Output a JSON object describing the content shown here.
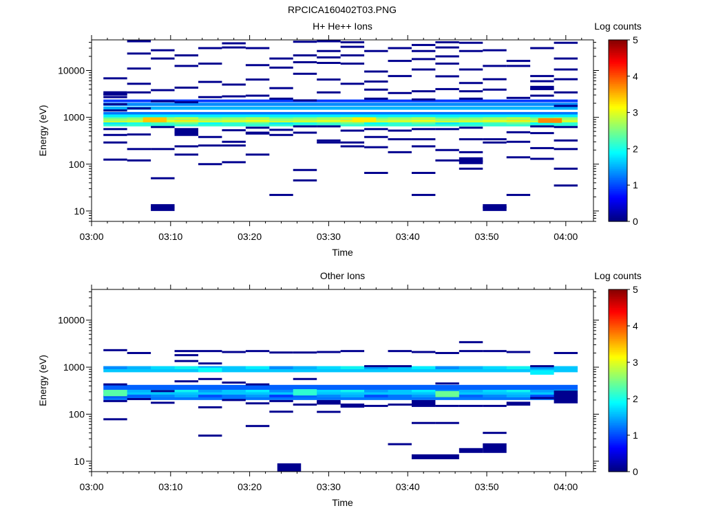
{
  "figure_title": "RPCICA160402T03.PNG",
  "chart_data": [
    {
      "type": "heatmap",
      "title": "H+ He++ Ions",
      "xlabel": "Time",
      "ylabel": "Energy (eV)",
      "x_ticks": [
        "03:00",
        "03:10",
        "03:20",
        "03:30",
        "03:40",
        "03:50",
        "04:00"
      ],
      "x_range_minutes": [
        0,
        63.5
      ],
      "y_scale": "log",
      "y_range_eV": [
        6,
        45000
      ],
      "y_ticks": [
        "10",
        "100",
        "1000",
        "10000"
      ],
      "colorbar": {
        "label": "Log counts",
        "min": 0,
        "max": 5,
        "ticks": [
          "0",
          "1",
          "2",
          "3",
          "4",
          "5"
        ]
      },
      "bands": [
        {
          "e_min": 640,
          "e_max": 780,
          "level": 2.1
        },
        {
          "e_min": 780,
          "e_max": 880,
          "level": 2.9
        },
        {
          "e_min": 880,
          "e_max": 1000,
          "level": 2.6
        },
        {
          "e_min": 1000,
          "e_max": 1150,
          "level": 1.8
        },
        {
          "e_min": 1150,
          "e_max": 1300,
          "level": 1.2
        },
        {
          "e_min": 1450,
          "e_max": 1700,
          "level": 1.5
        },
        {
          "e_min": 1750,
          "e_max": 2050,
          "level": 1.3
        },
        {
          "e_min": 2100,
          "e_max": 2400,
          "level": 0.9
        }
      ],
      "hot_spots": [
        {
          "t0": 6.5,
          "t1": 9.5,
          "e_min": 780,
          "e_max": 1000,
          "level": 3.4
        },
        {
          "t0": 56.5,
          "t1": 59.5,
          "e_min": 760,
          "e_max": 960,
          "level": 3.7
        },
        {
          "t0": 33,
          "t1": 36,
          "e_min": 780,
          "e_max": 1000,
          "level": 3.2
        }
      ],
      "segments": [
        {
          "t0": 1.5,
          "t1": 4.5,
          "energies": [
            2700,
            3100,
            1900,
            1400,
            560,
            420,
            290,
            125,
            6800
          ]
        },
        {
          "t0": 4.5,
          "t1": 7.5,
          "energies": [
            42000,
            23000,
            11000,
            5200,
            3400,
            1550,
            430,
            210,
            120
          ]
        },
        {
          "t0": 7.5,
          "t1": 10.5,
          "energies": [
            27000,
            18000,
            3800,
            2200,
            620,
            210,
            50,
            12
          ]
        },
        {
          "t0": 10.5,
          "t1": 13.5,
          "energies": [
            21000,
            12500,
            4300,
            2100,
            560,
            470,
            240,
            160
          ]
        },
        {
          "t0": 13.5,
          "t1": 16.5,
          "energies": [
            30000,
            14000,
            5700,
            2700,
            380,
            250,
            100
          ]
        },
        {
          "t0": 16.5,
          "t1": 19.5,
          "energies": [
            38000,
            31000,
            5000,
            2800,
            530,
            300,
            250,
            110
          ]
        },
        {
          "t0": 19.5,
          "t1": 22.5,
          "energies": [
            30000,
            13000,
            6400,
            2900,
            600,
            470,
            160,
            450
          ]
        },
        {
          "t0": 22.5,
          "t1": 25.5,
          "energies": [
            18000,
            11500,
            4200,
            2500,
            540,
            420,
            22
          ]
        },
        {
          "t0": 25.5,
          "t1": 28.5,
          "energies": [
            41000,
            21000,
            8500,
            2300,
            640,
            470,
            75,
            45,
            15000
          ]
        },
        {
          "t0": 28.5,
          "t1": 31.5,
          "energies": [
            42000,
            26000,
            19000,
            14500,
            6400,
            3400,
            640,
            320,
            290
          ]
        },
        {
          "t0": 31.5,
          "t1": 34.5,
          "energies": [
            40000,
            32000,
            21000,
            14000,
            5200,
            520,
            290,
            240
          ]
        },
        {
          "t0": 34.5,
          "t1": 37.5,
          "energies": [
            26000,
            9500,
            5800,
            3900,
            2500,
            560,
            380,
            230,
            65
          ]
        },
        {
          "t0": 37.5,
          "t1": 40.5,
          "energies": [
            30000,
            16000,
            7600,
            3300,
            520,
            340,
            180
          ]
        },
        {
          "t0": 40.5,
          "t1": 43.5,
          "energies": [
            35000,
            26000,
            17500,
            10500,
            3600,
            2400,
            560,
            340,
            240,
            65,
            22
          ]
        },
        {
          "t0": 43.5,
          "t1": 46.5,
          "energies": [
            40000,
            31000,
            20000,
            14000,
            7500,
            4000,
            560,
            200,
            120
          ]
        },
        {
          "t0": 46.5,
          "t1": 49.5,
          "energies": [
            39000,
            26000,
            10500,
            5400,
            3600,
            2500,
            600,
            340,
            180,
            115,
            80
          ]
        },
        {
          "t0": 49.5,
          "t1": 52.5,
          "energies": [
            27000,
            12500,
            6500,
            3900,
            340,
            290,
            12
          ]
        },
        {
          "t0": 52.5,
          "t1": 55.5,
          "energies": [
            16000,
            12500,
            2600,
            480,
            300,
            140,
            22
          ]
        },
        {
          "t0": 55.5,
          "t1": 58.5,
          "energies": [
            30000,
            7600,
            5900,
            4100,
            2900,
            640,
            460,
            220,
            130
          ]
        },
        {
          "t0": 58.5,
          "t1": 61.5,
          "energies": [
            39000,
            18000,
            10500,
            6500,
            3400,
            1750,
            620,
            320,
            210,
            80,
            35
          ]
        }
      ],
      "blocks": [
        {
          "t0": 7.5,
          "t1": 10.5,
          "e_min": 10,
          "e_max": 14
        },
        {
          "t0": 49.5,
          "t1": 52.5,
          "e_min": 10,
          "e_max": 14
        },
        {
          "t0": 10.5,
          "t1": 13.5,
          "e_min": 400,
          "e_max": 540
        },
        {
          "t0": 46.5,
          "t1": 49.5,
          "e_min": 100,
          "e_max": 140
        },
        {
          "t0": 1.5,
          "t1": 4.5,
          "e_min": 2900,
          "e_max": 3600
        },
        {
          "t0": 55.5,
          "t1": 58.5,
          "e_min": 3800,
          "e_max": 4700
        }
      ]
    },
    {
      "type": "heatmap",
      "title": "Other Ions",
      "xlabel": "Time",
      "ylabel": "Energy (eV)",
      "x_ticks": [
        "03:00",
        "03:10",
        "03:20",
        "03:30",
        "03:40",
        "03:50",
        "04:00"
      ],
      "x_range_minutes": [
        0,
        63.5
      ],
      "y_scale": "log",
      "y_range_eV": [
        6,
        45000
      ],
      "y_ticks": [
        "10",
        "100",
        "1000",
        "10000"
      ],
      "colorbar": {
        "label": "Log counts",
        "min": 0,
        "max": 5,
        "ticks": [
          "0",
          "1",
          "2",
          "3",
          "4",
          "5"
        ]
      },
      "bands": [
        {
          "e_min": 780,
          "e_max": 1050,
          "level": 1.6
        },
        {
          "e_min": 200,
          "e_max": 260,
          "level": 1.2
        },
        {
          "e_min": 260,
          "e_max": 330,
          "level": 1.6
        },
        {
          "e_min": 330,
          "e_max": 420,
          "level": 1.1
        }
      ],
      "hot_spots": [
        {
          "t0": 1.5,
          "t1": 4.5,
          "e_min": 240,
          "e_max": 330,
          "level": 2.3
        },
        {
          "t0": 43.5,
          "t1": 46.5,
          "e_min": 230,
          "e_max": 310,
          "level": 2.4
        },
        {
          "t0": 25.5,
          "t1": 28.5,
          "e_min": 250,
          "e_max": 340,
          "level": 2.1
        },
        {
          "t0": 13.5,
          "t1": 16.5,
          "e_min": 790,
          "e_max": 980,
          "level": 1.9
        },
        {
          "t0": 55.5,
          "t1": 58.5,
          "e_min": 690,
          "e_max": 860,
          "level": 1.8
        }
      ],
      "segments": [
        {
          "t0": 1.5,
          "t1": 4.5,
          "energies": [
            2300,
            430,
            190,
            78
          ]
        },
        {
          "t0": 4.5,
          "t1": 7.5,
          "energies": [
            2000,
            210
          ]
        },
        {
          "t0": 7.5,
          "t1": 10.5,
          "energies": [
            310,
            175
          ]
        },
        {
          "t0": 10.5,
          "t1": 13.5,
          "energies": [
            2200,
            1800,
            1350,
            500
          ]
        },
        {
          "t0": 13.5,
          "t1": 16.5,
          "energies": [
            2200,
            1200,
            560,
            140,
            35
          ]
        },
        {
          "t0": 16.5,
          "t1": 19.5,
          "energies": [
            2100,
            470,
            200
          ]
        },
        {
          "t0": 19.5,
          "t1": 22.5,
          "energies": [
            2200,
            430,
            170,
            56
          ]
        },
        {
          "t0": 22.5,
          "t1": 25.5,
          "energies": [
            2050,
            190,
            113
          ]
        },
        {
          "t0": 25.5,
          "t1": 28.5,
          "energies": [
            2050,
            560,
            160
          ]
        },
        {
          "t0": 28.5,
          "t1": 31.5,
          "energies": [
            2100,
            180,
            112
          ]
        },
        {
          "t0": 31.5,
          "t1": 34.5,
          "energies": [
            2200,
            160,
            145
          ]
        },
        {
          "t0": 34.5,
          "t1": 37.5,
          "energies": [
            1050,
            150
          ]
        },
        {
          "t0": 37.5,
          "t1": 40.5,
          "energies": [
            2200,
            1050,
            160,
            23
          ]
        },
        {
          "t0": 40.5,
          "t1": 43.5,
          "energies": [
            2100,
            150,
            65
          ]
        },
        {
          "t0": 43.5,
          "t1": 46.5,
          "energies": [
            2000,
            450,
            150,
            65
          ]
        },
        {
          "t0": 46.5,
          "t1": 49.5,
          "energies": [
            3400,
            2200,
            150
          ]
        },
        {
          "t0": 49.5,
          "t1": 52.5,
          "energies": [
            2200,
            150,
            40
          ]
        },
        {
          "t0": 52.5,
          "t1": 55.5,
          "energies": [
            2100,
            175,
            160
          ]
        },
        {
          "t0": 55.5,
          "t1": 58.5,
          "energies": [
            1050,
            220
          ]
        },
        {
          "t0": 58.5,
          "t1": 61.5,
          "energies": [
            2000,
            250
          ]
        }
      ],
      "blocks": [
        {
          "t0": 23.5,
          "t1": 26.5,
          "e_min": 6,
          "e_max": 9
        },
        {
          "t0": 40.5,
          "t1": 46.5,
          "e_min": 11,
          "e_max": 14
        },
        {
          "t0": 46.5,
          "t1": 49.5,
          "e_min": 15,
          "e_max": 19
        },
        {
          "t0": 49.5,
          "t1": 52.5,
          "e_min": 15,
          "e_max": 24
        },
        {
          "t0": 28.5,
          "t1": 31.5,
          "e_min": 160,
          "e_max": 200
        },
        {
          "t0": 40.5,
          "t1": 43.5,
          "e_min": 150,
          "e_max": 200
        },
        {
          "t0": 58.5,
          "t1": 61.5,
          "e_min": 170,
          "e_max": 320
        }
      ]
    }
  ]
}
